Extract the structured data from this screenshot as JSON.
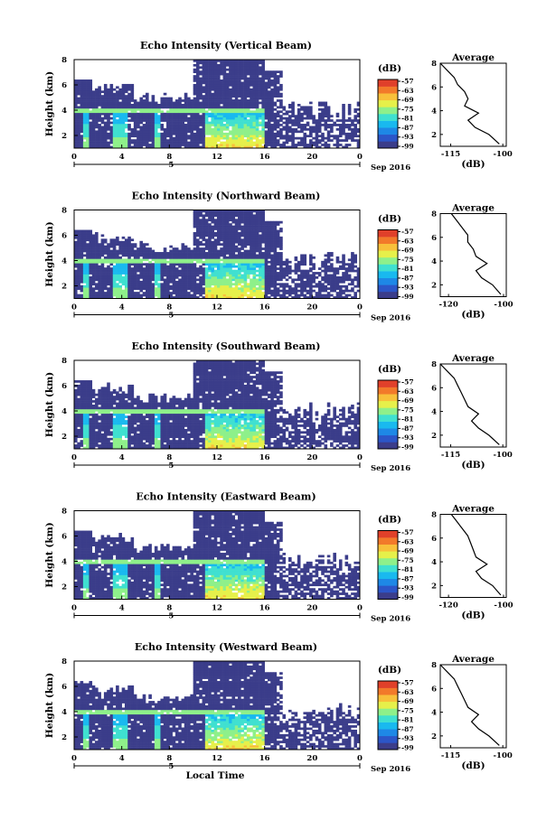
{
  "chart_data": [
    {
      "type": "heatmap",
      "title": "Echo Intensity (Vertical Beam)",
      "ylabel": "Height (km)",
      "ylim": [
        1,
        8
      ],
      "yticks": [
        "2",
        "4",
        "6",
        "8"
      ],
      "xticks": [
        "0",
        "4",
        "8",
        "12",
        "16",
        "20",
        "0"
      ],
      "xlim": [
        0,
        24
      ],
      "date_marker": "5",
      "date_label": "Sep 2016",
      "colorbar_unit": "(dB)",
      "colorbar_ticks": [
        "-57",
        "-63",
        "-69",
        "-75",
        "-81",
        "-87",
        "-93",
        "-99"
      ],
      "avg_title": "Average",
      "avg_xlabel": "(dB)",
      "avg_xticks": [
        "-115",
        "-100"
      ],
      "avg_yticks": [
        "2",
        "4",
        "6",
        "8"
      ],
      "avg_profile": {
        "height": [
          1.2,
          2.0,
          2.6,
          3.2,
          3.8,
          4.4,
          5.0,
          5.6,
          6.2,
          6.8,
          7.4,
          8.0
        ],
        "db": [
          -101,
          -104,
          -108,
          -110,
          -107,
          -111,
          -110,
          -111,
          -113,
          -114,
          -116,
          -118
        ]
      }
    },
    {
      "type": "heatmap",
      "title": "Echo Intensity (Northward Beam)",
      "ylabel": "Height (km)",
      "ylim": [
        1,
        8
      ],
      "yticks": [
        "2",
        "4",
        "6",
        "8"
      ],
      "xticks": [
        "0",
        "4",
        "8",
        "12",
        "16",
        "20",
        "0"
      ],
      "xlim": [
        0,
        24
      ],
      "date_marker": "5",
      "date_label": "Sep 2016",
      "colorbar_unit": "(dB)",
      "colorbar_ticks": [
        "-57",
        "-63",
        "-69",
        "-75",
        "-81",
        "-87",
        "-93",
        "-99"
      ],
      "avg_title": "Average",
      "avg_xlabel": "(dB)",
      "avg_xticks": [
        "-120",
        "-100"
      ],
      "avg_yticks": [
        "2",
        "4",
        "6",
        "8"
      ],
      "avg_profile": {
        "height": [
          1.2,
          2.0,
          2.6,
          3.2,
          3.8,
          4.4,
          5.0,
          5.6,
          6.2,
          6.8,
          7.4,
          8.0
        ],
        "db": [
          -101,
          -104,
          -108,
          -110,
          -106,
          -110,
          -111,
          -113,
          -113,
          -115,
          -117,
          -119
        ]
      }
    },
    {
      "type": "heatmap",
      "title": "Echo Intensity (Southward Beam)",
      "ylabel": "Height (km)",
      "ylim": [
        1,
        8
      ],
      "yticks": [
        "2",
        "4",
        "6",
        "8"
      ],
      "xticks": [
        "0",
        "4",
        "8",
        "12",
        "16",
        "20",
        "0"
      ],
      "xlim": [
        0,
        24
      ],
      "date_marker": "5",
      "date_label": "Sep 2016",
      "colorbar_unit": "(dB)",
      "colorbar_ticks": [
        "-57",
        "-63",
        "-69",
        "-75",
        "-81",
        "-87",
        "-93",
        "-99"
      ],
      "avg_title": "Average",
      "avg_xlabel": "(dB)",
      "avg_xticks": [
        "-115",
        "-100"
      ],
      "avg_yticks": [
        "2",
        "4",
        "6",
        "8"
      ],
      "avg_profile": {
        "height": [
          1.2,
          2.0,
          2.6,
          3.2,
          3.8,
          4.4,
          5.0,
          5.6,
          6.2,
          6.8,
          7.4,
          8.0
        ],
        "db": [
          -101,
          -104,
          -107,
          -109,
          -107,
          -110,
          -111,
          -112,
          -113,
          -114,
          -116,
          -118
        ]
      }
    },
    {
      "type": "heatmap",
      "title": "Echo Intensity (Eastward Beam)",
      "ylabel": "Height (km)",
      "ylim": [
        1,
        8
      ],
      "yticks": [
        "2",
        "4",
        "6",
        "8"
      ],
      "xticks": [
        "0",
        "4",
        "8",
        "12",
        "16",
        "20",
        "0"
      ],
      "xlim": [
        0,
        24
      ],
      "date_marker": "5",
      "date_label": "Sep 2016",
      "colorbar_unit": "(dB)",
      "colorbar_ticks": [
        "-57",
        "-63",
        "-69",
        "-75",
        "-81",
        "-87",
        "-93",
        "-99"
      ],
      "avg_title": "Average",
      "avg_xlabel": "(dB)",
      "avg_xticks": [
        "-120",
        "-100"
      ],
      "avg_yticks": [
        "2",
        "4",
        "6",
        "8"
      ],
      "avg_profile": {
        "height": [
          1.2,
          2.0,
          2.6,
          3.2,
          3.8,
          4.4,
          5.0,
          5.6,
          6.2,
          6.8,
          7.4,
          8.0
        ],
        "db": [
          -101,
          -104,
          -108,
          -110,
          -106,
          -110,
          -111,
          -112,
          -113,
          -115,
          -117,
          -119
        ]
      }
    },
    {
      "type": "heatmap",
      "title": "Echo Intensity (Westward Beam)",
      "ylabel": "Height (km)",
      "ylim": [
        1,
        8
      ],
      "yticks": [
        "2",
        "4",
        "6",
        "8"
      ],
      "xticks": [
        "0",
        "4",
        "8",
        "12",
        "16",
        "20",
        "0"
      ],
      "xlim": [
        0,
        24
      ],
      "date_marker": "5",
      "date_label": "Sep 2016",
      "colorbar_unit": "(dB)",
      "colorbar_ticks": [
        "-57",
        "-63",
        "-69",
        "-75",
        "-81",
        "-87",
        "-93",
        "-99"
      ],
      "avg_title": "Average",
      "avg_xlabel": "(dB)",
      "avg_xticks": [
        "-115",
        "-100"
      ],
      "avg_yticks": [
        "2",
        "4",
        "6",
        "8"
      ],
      "avg_profile": {
        "height": [
          1.2,
          2.0,
          2.6,
          3.2,
          3.8,
          4.4,
          5.0,
          5.6,
          6.2,
          6.8,
          7.4,
          8.0
        ],
        "db": [
          -101,
          -104,
          -107,
          -109,
          -107,
          -110,
          -111,
          -112,
          -113,
          -114,
          -116,
          -118
        ]
      }
    }
  ],
  "figure": {
    "xlabel": "Local Time"
  },
  "colors": {
    "background_echo": "#3b3d8a",
    "colormap": [
      "#3b3d8a",
      "#2c56c8",
      "#1e88e6",
      "#19b9ef",
      "#3fe0d0",
      "#8ef08a",
      "#e6f04a",
      "#f8c03a",
      "#f27a2a",
      "#e0402a"
    ]
  }
}
